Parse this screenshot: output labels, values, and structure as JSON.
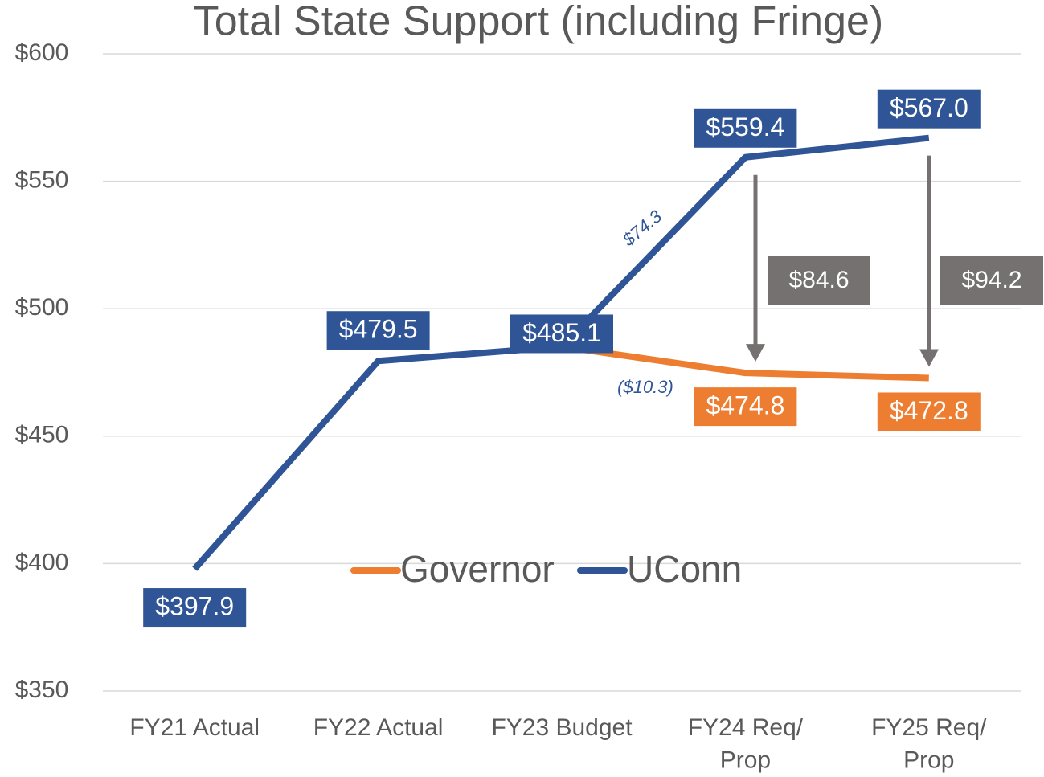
{
  "chart_data": {
    "type": "line",
    "title": "Total State Support (including Fringe)",
    "categories": [
      "FY21 Actual",
      "FY22 Actual",
      "FY23 Budget",
      "FY24 Req/\nProp",
      "FY25 Req/\nProp"
    ],
    "series": [
      {
        "name": "Governor",
        "color": "#ed7d31",
        "values": [
          null,
          null,
          485.1,
          474.8,
          472.8
        ],
        "value_labels": [
          null,
          null,
          null,
          "$474.8",
          "$472.8"
        ]
      },
      {
        "name": "UConn",
        "color": "#2f5597",
        "values": [
          397.9,
          479.5,
          485.1,
          559.4,
          567.0
        ],
        "value_labels": [
          "$397.9",
          "$479.5",
          "$485.1",
          "$559.4",
          "$567.0"
        ]
      }
    ],
    "annotations": [
      "$74.3",
      "($10.3)",
      "$84.6",
      "$94.2"
    ],
    "ylim": [
      350,
      600
    ],
    "yticks": [
      {
        "value": 350,
        "label": "$350"
      },
      {
        "value": 400,
        "label": "$400"
      },
      {
        "value": 450,
        "label": "$450"
      },
      {
        "value": 500,
        "label": "$500"
      },
      {
        "value": 550,
        "label": "$550"
      },
      {
        "value": 600,
        "label": "$600"
      }
    ],
    "grid": true,
    "legend": "center"
  }
}
